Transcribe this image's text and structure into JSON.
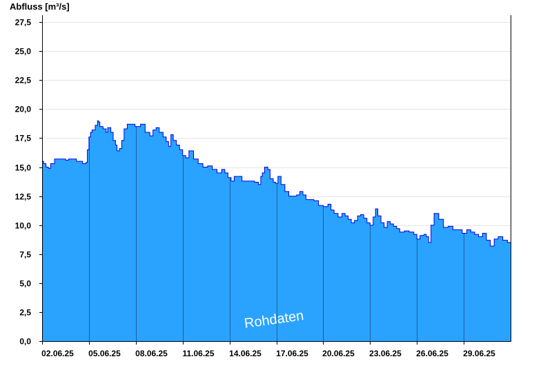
{
  "chart_data": {
    "type": "area",
    "ylabel": "Abfluss [m³/s]",
    "xlabel": "",
    "title": "",
    "watermark": "Rohdaten",
    "ylim": [
      0,
      28.1
    ],
    "xlim": [
      0,
      30
    ],
    "grid": true,
    "colors": {
      "fill": "#29a3ff",
      "line": "#0000dd",
      "grid": "#e4e4e4",
      "dayline": "#1c5f9e"
    },
    "y_ticks": [
      {
        "value": 0,
        "label": "0,0"
      },
      {
        "value": 2.5,
        "label": "2,5"
      },
      {
        "value": 5.0,
        "label": "5,0"
      },
      {
        "value": 7.5,
        "label": "7,5"
      },
      {
        "value": 10.0,
        "label": "10,0"
      },
      {
        "value": 12.5,
        "label": "12,5"
      },
      {
        "value": 15.0,
        "label": "15,0"
      },
      {
        "value": 17.5,
        "label": "17,5"
      },
      {
        "value": 20.0,
        "label": "20,0"
      },
      {
        "value": 22.5,
        "label": "22,5"
      },
      {
        "value": 25.0,
        "label": "25,0"
      },
      {
        "value": 27.5,
        "label": "27,5"
      }
    ],
    "x_ticks": [
      {
        "value": 0,
        "label": "02.06.25"
      },
      {
        "value": 3,
        "label": "05.06.25"
      },
      {
        "value": 6,
        "label": "08.06.25"
      },
      {
        "value": 9,
        "label": "11.06.25"
      },
      {
        "value": 12,
        "label": "14.06.25"
      },
      {
        "value": 15,
        "label": "17.06.25"
      },
      {
        "value": 18,
        "label": "20.06.25"
      },
      {
        "value": 21,
        "label": "23.06.25"
      },
      {
        "value": 24,
        "label": "26.06.25"
      },
      {
        "value": 27,
        "label": "29.06.25"
      }
    ],
    "day_lines": [
      3,
      6,
      9,
      12,
      15,
      18,
      21,
      24,
      27
    ],
    "series": [
      {
        "x": [
          0,
          0.1,
          0.25,
          0.4,
          0.55,
          0.8,
          1.0,
          1.5,
          1.7,
          2.2,
          2.6,
          2.8,
          2.9,
          3.0,
          3.1,
          3.2,
          3.4,
          3.55,
          3.6,
          3.7,
          3.9,
          4.1,
          4.2,
          4.4,
          4.55,
          4.7,
          4.8,
          4.95,
          5.1,
          5.25,
          5.45,
          5.7,
          5.95,
          6.3,
          6.6,
          6.9,
          7.1,
          7.3,
          7.5,
          7.75,
          7.95,
          8.1,
          8.25,
          8.4,
          8.6,
          8.8,
          9.0,
          9.2,
          9.4,
          9.7,
          10.0,
          10.3,
          10.6,
          10.9,
          11.2,
          11.5,
          11.7,
          11.9,
          12.1,
          12.3,
          12.5,
          12.8,
          13.2,
          13.6,
          13.85,
          14.0,
          14.1,
          14.25,
          14.45,
          14.6,
          14.8,
          14.95,
          15.1,
          15.3,
          15.55,
          15.8,
          16.0,
          16.3,
          16.5,
          16.7,
          16.9,
          17.1,
          17.4,
          17.7,
          18.0,
          18.3,
          18.5,
          18.7,
          18.95,
          19.2,
          19.4,
          19.6,
          19.8,
          20.0,
          20.2,
          20.4,
          20.6,
          20.8,
          21.0,
          21.2,
          21.35,
          21.5,
          21.7,
          21.9,
          22.1,
          22.3,
          22.5,
          22.7,
          22.9,
          23.2,
          23.5,
          23.8,
          24.0,
          24.2,
          24.45,
          24.6,
          24.75,
          24.9,
          25.1,
          25.4,
          25.7,
          26.0,
          26.3,
          26.6,
          26.9,
          27.2,
          27.45,
          27.7,
          27.95,
          28.2,
          28.45,
          28.7,
          28.95,
          29.2,
          29.5,
          29.8,
          30.0
        ],
        "values": [
          15.5,
          15.3,
          15.0,
          14.9,
          15.3,
          15.7,
          15.7,
          15.6,
          15.7,
          15.5,
          15.3,
          15.4,
          16.5,
          17.6,
          18.0,
          18.2,
          18.6,
          19.0,
          18.9,
          18.5,
          18.3,
          18.0,
          18.4,
          18.0,
          17.3,
          16.9,
          16.4,
          16.6,
          17.3,
          18.3,
          18.7,
          18.7,
          18.5,
          18.7,
          18.0,
          17.7,
          18.2,
          18.4,
          18.0,
          17.6,
          17.2,
          16.8,
          17.8,
          17.3,
          16.9,
          16.5,
          16.0,
          15.8,
          16.4,
          15.7,
          15.3,
          15.0,
          15.1,
          14.8,
          14.5,
          14.8,
          14.5,
          14.1,
          13.8,
          14.2,
          14.2,
          13.8,
          13.8,
          13.7,
          13.5,
          14.2,
          14.5,
          15.0,
          14.8,
          14.0,
          13.7,
          13.6,
          14.2,
          13.5,
          12.9,
          12.5,
          12.5,
          12.6,
          12.9,
          12.6,
          12.2,
          12.2,
          12.1,
          11.7,
          11.6,
          11.8,
          11.3,
          11.0,
          10.7,
          11.0,
          10.8,
          10.5,
          10.2,
          10.4,
          10.8,
          10.9,
          10.6,
          10.2,
          10.0,
          10.7,
          11.4,
          10.8,
          10.2,
          9.8,
          10.3,
          10.1,
          9.9,
          9.7,
          9.4,
          9.5,
          9.4,
          9.2,
          8.8,
          9.1,
          9.2,
          9.0,
          8.5,
          10.0,
          11.0,
          10.5,
          9.8,
          9.9,
          9.6,
          9.6,
          9.3,
          9.6,
          9.4,
          9.2,
          9.0,
          9.3,
          8.7,
          8.2,
          8.8,
          9.0,
          8.7,
          8.5,
          8.5
        ]
      }
    ]
  }
}
